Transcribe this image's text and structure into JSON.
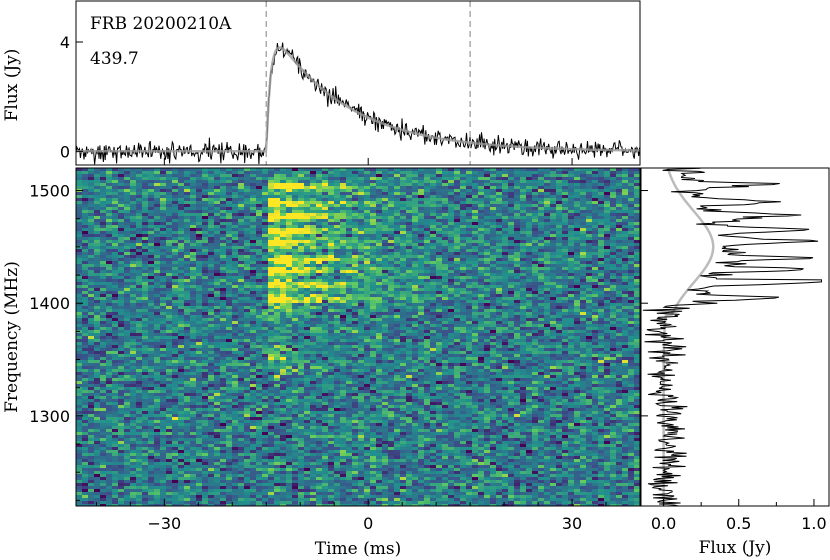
{
  "chart_data": [
    {
      "type": "line",
      "panel": "top",
      "title": "",
      "annotations": [
        "FRB 20200210A",
        "439.7"
      ],
      "xlabel": "",
      "ylabel": "Flux (Jy)",
      "xlim": [
        -43,
        40
      ],
      "ylim": [
        -0.5,
        5.5
      ],
      "yticks": [
        0,
        4
      ],
      "ytick_labels": [
        "0",
        "4"
      ],
      "vlines_dashed": [
        -15,
        15
      ],
      "series": [
        {
          "kind": "data",
          "color": "#000000"
        },
        {
          "kind": "model",
          "color": "#999999"
        }
      ],
      "burst_onset_ms": -15,
      "peak_flux_jy": 4.6,
      "peak_time_ms": -13,
      "decay_timescale_ms": 11,
      "noise_rms_jy": 0.18
    },
    {
      "type": "heatmap",
      "panel": "dynamic-spectrum",
      "xlabel": "Time (ms)",
      "ylabel": "Frequency (MHz)",
      "xlim": [
        -43,
        40
      ],
      "ylim": [
        1220,
        1520
      ],
      "xticks": [
        -30,
        0,
        30
      ],
      "xtick_labels": [
        "−30",
        "0",
        "30"
      ],
      "yticks": [
        1300,
        1400,
        1500
      ],
      "ytick_labels": [
        "1300",
        "1400",
        "1500"
      ],
      "colormap": [
        "#440154",
        "#3b528b",
        "#21908d",
        "#5dc963",
        "#fde725"
      ],
      "bright_bands_mhz": [
        1505,
        1490,
        1478,
        1465,
        1455,
        1440,
        1430,
        1418,
        1405
      ],
      "burst_onset_ms": -15
    },
    {
      "type": "line",
      "panel": "right-spectrum",
      "xlabel": "Flux (Jy)",
      "ylabel": "",
      "xlim": [
        -0.15,
        1.1
      ],
      "ylim": [
        1220,
        1520
      ],
      "xticks": [
        0.0,
        0.5,
        1.0
      ],
      "xtick_labels": [
        "0.0",
        "0.5",
        "1.0"
      ],
      "series": [
        {
          "kind": "data",
          "color": "#000000"
        },
        {
          "kind": "model",
          "color": "#bbbbbb"
        }
      ],
      "peak_flux_jy": 1.05,
      "peak_frequency_mhz": 1420
    }
  ],
  "colors": {
    "heatmap_bg": "#2a6b8e",
    "data_line": "#000000",
    "model_line": "#9a9a9a",
    "vline": "#aaaaaa"
  }
}
